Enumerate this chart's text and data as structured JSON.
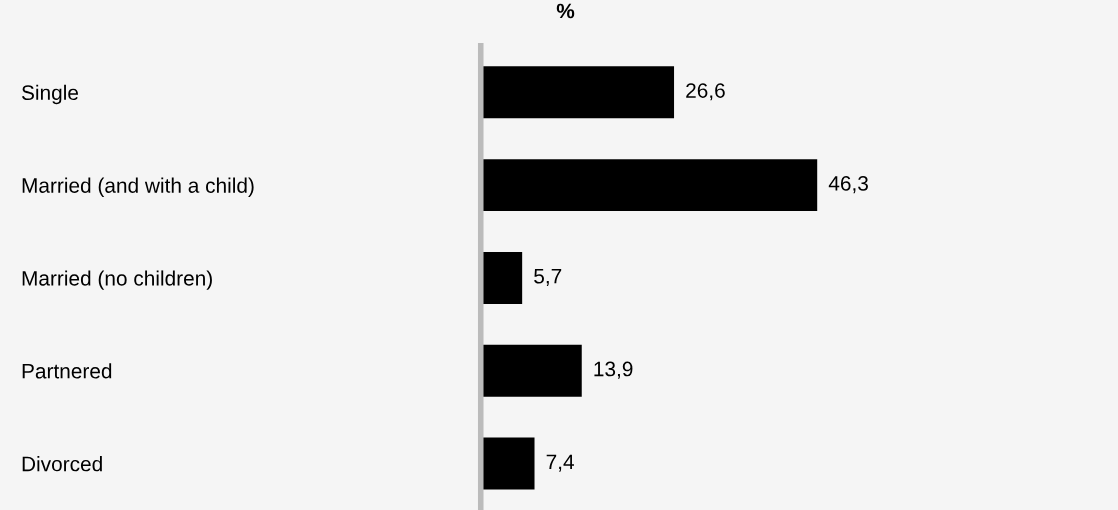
{
  "chart_data": {
    "type": "bar",
    "orientation": "horizontal",
    "title": "%",
    "categories": [
      "Single",
      "Married (and with a child)",
      "Married (no children)",
      "Partnered",
      "Divorced"
    ],
    "values": [
      26.6,
      46.3,
      5.7,
      13.9,
      7.4
    ],
    "value_labels": [
      "26,6",
      "46,3",
      "5,7",
      "13,9",
      "7,4"
    ],
    "color": "#000000",
    "tick_labels": "y",
    "grid": false,
    "legend": false
  }
}
